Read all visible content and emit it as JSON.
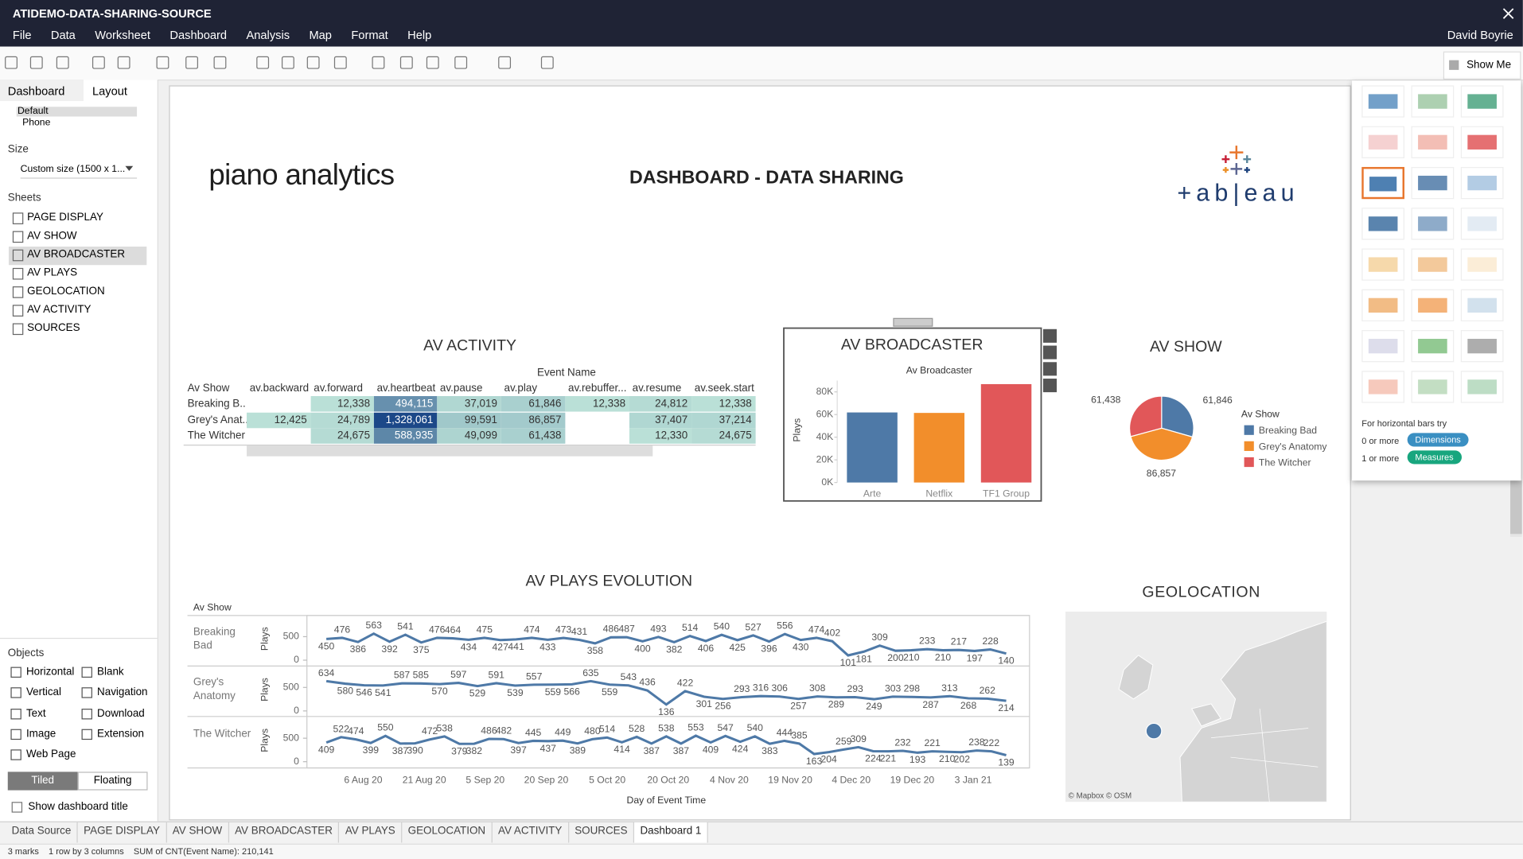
{
  "window": {
    "title": "ATIDEMO-DATA-SHARING-SOURCE",
    "user": "David Boyrie"
  },
  "menu": [
    "File",
    "Data",
    "Worksheet",
    "Dashboard",
    "Analysis",
    "Map",
    "Format",
    "Help"
  ],
  "show_me": {
    "button": "Show Me",
    "hint": "For horizontal bars try",
    "dims_prefix": "0 or more",
    "dims": "Dimensions",
    "meas_prefix": "1 or more",
    "meas": "Measures"
  },
  "left_panel": {
    "tabs": [
      "Dashboard",
      "Layout"
    ],
    "devices": [
      "Default",
      "Phone"
    ],
    "size_label": "Size",
    "size_value": "Custom size (1500 x 1...",
    "sheets_label": "Sheets",
    "sheets": [
      "PAGE DISPLAY",
      "AV SHOW",
      "AV BROADCASTER",
      "AV PLAYS",
      "GEOLOCATION",
      "AV ACTIVITY",
      "SOURCES"
    ],
    "selected_sheet": 2,
    "objects_label": "Objects",
    "objects": [
      "Horizontal",
      "Blank",
      "Vertical",
      "Navigation",
      "Text",
      "Download",
      "Image",
      "Extension",
      "Web Page"
    ],
    "tiled": "Tiled",
    "floating": "Floating",
    "show_title": "Show dashboard title"
  },
  "dashboard": {
    "logo_left": "piano analytics",
    "title": "DASHBOARD - DATA SHARING",
    "logo_right": "+ab|eau",
    "activity": {
      "title": "AV ACTIVITY",
      "column_header": "Event Name",
      "row_header": "Av Show",
      "columns": [
        "av.backward",
        "av.forward",
        "av.heartbeat",
        "av.pause",
        "av.play",
        "av.rebuffer...",
        "av.resume",
        "av.seek.start"
      ],
      "rows": [
        {
          "name": "Breaking B..",
          "cells": [
            null,
            "12,338",
            "494,115",
            "37,019",
            "61,846",
            "12,338",
            "24,812",
            "12,338"
          ]
        },
        {
          "name": "Grey's Anat..",
          "cells": [
            "12,425",
            "24,789",
            "1,328,061",
            "99,591",
            "86,857",
            null,
            "37,407",
            "37,214"
          ]
        },
        {
          "name": "The Witcher",
          "cells": [
            null,
            "24,675",
            "588,935",
            "49,099",
            "61,438",
            null,
            "12,330",
            "24,675"
          ]
        }
      ]
    },
    "geo": {
      "title": "GEOLOCATION",
      "attribution": "© Mapbox  © OSM"
    }
  },
  "chart_data": [
    {
      "type": "bar",
      "title": "AV BROADCASTER",
      "subtitle": "Av Broadcaster",
      "ylabel": "Plays",
      "categories": [
        "Arte",
        "Netflix",
        "TF1 Group"
      ],
      "values": [
        61846,
        61438,
        86857
      ],
      "colors": [
        "#4e79a7",
        "#f28e2b",
        "#e15759"
      ],
      "ylim": [
        0,
        90000
      ],
      "yticks": [
        {
          "value": 0,
          "label": "0K"
        },
        {
          "value": 20000,
          "label": "20K"
        },
        {
          "value": 40000,
          "label": "40K"
        },
        {
          "value": 60000,
          "label": "60K"
        },
        {
          "value": 80000,
          "label": "80K"
        }
      ],
      "grid": false
    },
    {
      "type": "pie",
      "title": "AV SHOW",
      "legend_title": "Av Show",
      "categories": [
        "Breaking Bad",
        "Grey's Anatomy",
        "The Witcher"
      ],
      "values": [
        61846,
        86857,
        61438
      ],
      "value_labels": [
        "61,846",
        "86,857",
        "61,438"
      ],
      "colors": [
        "#4e79a7",
        "#f28e2b",
        "#e15759"
      ]
    },
    {
      "type": "line",
      "title": "AV PLAYS EVOLUTION",
      "facet_label": "Av Show",
      "ylabel": "Plays",
      "xlabel": "Day of Event Time",
      "ylim": [
        0,
        950
      ],
      "yticks": [
        0,
        500
      ],
      "xtick_labels": [
        "6 Aug 20",
        "21 Aug 20",
        "5 Sep 20",
        "20 Sep 20",
        "5 Oct 20",
        "20 Oct 20",
        "4 Nov 20",
        "19 Nov 20",
        "4 Dec 20",
        "19 Dec 20",
        "3 Jan 21"
      ],
      "series": [
        {
          "name": "Breaking Bad",
          "color": "#4e79a7",
          "values": [
            450,
            476,
            386,
            563,
            392,
            541,
            375,
            476,
            464,
            434,
            475,
            427,
            441,
            474,
            433,
            473,
            431,
            358,
            486,
            487,
            400,
            493,
            382,
            514,
            406,
            540,
            425,
            527,
            396,
            556,
            430,
            474,
            402,
            101,
            181,
            309,
            200,
            210,
            233,
            210,
            217,
            197,
            228,
            140
          ]
        },
        {
          "name": "Grey's Anatomy",
          "color": "#4e79a7",
          "values": [
            634,
            580,
            546,
            541,
            587,
            585,
            570,
            597,
            529,
            591,
            539,
            557,
            559,
            566,
            635,
            559,
            543,
            436,
            136,
            422,
            301,
            256,
            293,
            316,
            306,
            257,
            308,
            289,
            293,
            249,
            303,
            298,
            287,
            313,
            268,
            262,
            214
          ]
        },
        {
          "name": "The Witcher",
          "color": "#4e79a7",
          "values": [
            409,
            522,
            474,
            399,
            550,
            387,
            390,
            472,
            538,
            379,
            382,
            486,
            482,
            397,
            445,
            437,
            449,
            389,
            480,
            514,
            414,
            528,
            387,
            538,
            387,
            553,
            409,
            547,
            424,
            540,
            383,
            444,
            385,
            163,
            204,
            259,
            309,
            224,
            221,
            232,
            193,
            221,
            210,
            202,
            238,
            222,
            139
          ]
        }
      ]
    }
  ],
  "tabs": [
    "Data Source",
    "PAGE DISPLAY",
    "AV SHOW",
    "AV BROADCASTER",
    "AV PLAYS",
    "GEOLOCATION",
    "AV ACTIVITY",
    "SOURCES",
    "Dashboard 1"
  ],
  "active_tab": 8,
  "status": [
    "3 marks",
    "1 row by 3 columns",
    "SUM of CNT(Event Name): 210,141"
  ]
}
